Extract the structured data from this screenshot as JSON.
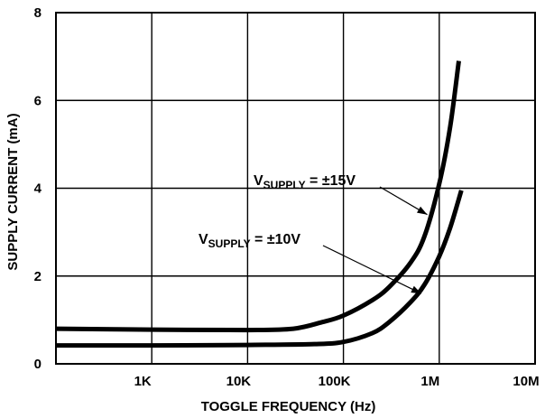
{
  "chart_data": {
    "type": "line",
    "xlabel": "TOGGLE FREQUENCY (Hz)",
    "ylabel": "SUPPLY CURRENT (mA)",
    "x_scale": "log",
    "xlim": [
      100,
      10000000
    ],
    "ylim": [
      0,
      8
    ],
    "x_ticks": [
      {
        "value": 1000,
        "label": "1K"
      },
      {
        "value": 10000,
        "label": "10K"
      },
      {
        "value": 100000,
        "label": "100K"
      },
      {
        "value": 1000000,
        "label": "1M"
      },
      {
        "value": 10000000,
        "label": "10M"
      }
    ],
    "y_ticks": [
      {
        "value": 0,
        "label": "0"
      },
      {
        "value": 2,
        "label": "2"
      },
      {
        "value": 4,
        "label": "4"
      },
      {
        "value": 6,
        "label": "6"
      },
      {
        "value": 8,
        "label": "8"
      }
    ],
    "grid": true,
    "series": [
      {
        "x": [
          100,
          1000,
          10000,
          30000,
          60000,
          100000,
          200000,
          300000,
          500000,
          700000,
          1000000,
          1300000,
          1600000
        ],
        "y": [
          0.8,
          0.78,
          0.77,
          0.8,
          0.95,
          1.1,
          1.45,
          1.75,
          2.3,
          2.9,
          4.1,
          5.4,
          6.9
        ]
      },
      {
        "x": [
          100,
          1000,
          10000,
          50000,
          100000,
          200000,
          300000,
          500000,
          700000,
          1000000,
          1300000,
          1700000
        ],
        "y": [
          0.42,
          0.42,
          0.43,
          0.45,
          0.5,
          0.7,
          0.95,
          1.4,
          1.8,
          2.45,
          3.1,
          3.95
        ]
      }
    ],
    "annotations": [
      {
        "main": "V",
        "sub": "SUPPLY",
        "rest": " = ±15V",
        "target": {
          "x": 750000,
          "y": 3.4
        }
      },
      {
        "main": "V",
        "sub": "SUPPLY",
        "rest": " = ±10V",
        "target": {
          "x": 650000,
          "y": 1.6
        }
      }
    ]
  }
}
